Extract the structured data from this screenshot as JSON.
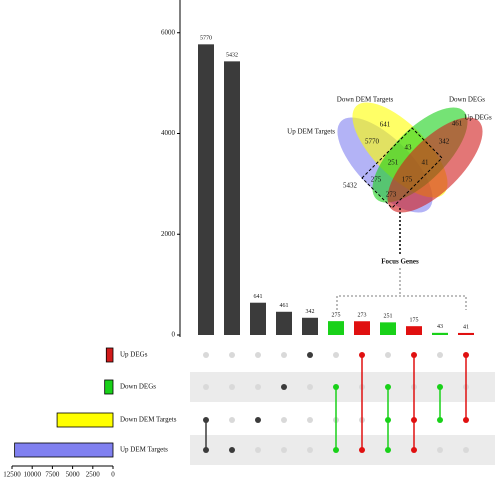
{
  "chart_data": {
    "type": "upset",
    "intersections": {
      "values": [
        5770,
        5432,
        641,
        461,
        342,
        275,
        273,
        251,
        175,
        43,
        41
      ],
      "colors": [
        "#3b3b3b",
        "#3b3b3b",
        "#3b3b3b",
        "#3b3b3b",
        "#3b3b3b",
        "#19d119",
        "#e01010",
        "#19d119",
        "#e01010",
        "#19d119",
        "#e01010"
      ],
      "members": [
        [
          2,
          3
        ],
        [
          3
        ],
        [
          2
        ],
        [
          1
        ],
        [
          0
        ],
        [
          1,
          3
        ],
        [
          0,
          3
        ],
        [
          1,
          2,
          3
        ],
        [
          0,
          2,
          3
        ],
        [
          1,
          2
        ],
        [
          0,
          2
        ]
      ]
    },
    "ylim": [
      0,
      6650
    ],
    "yticks": [
      0,
      2000,
      4000,
      6000
    ],
    "sets": {
      "names": [
        "Up DEGs",
        "Down DEGs",
        "Down DEM Targets",
        "Up DEM Targets"
      ],
      "values": [
        831,
        1030,
        6921,
        12176
      ],
      "colors": [
        "#d11a1a",
        "#19d119",
        "#ffff00",
        "#8080f0"
      ]
    },
    "xlim": [
      12500,
      0
    ],
    "xticks": [
      12500,
      10000,
      7500,
      5000,
      2500,
      0
    ],
    "venn_values": [
      5432,
      641,
      5770,
      461,
      43,
      251,
      41,
      342,
      275,
      175,
      273
    ],
    "annotation": "Focus Genes"
  }
}
